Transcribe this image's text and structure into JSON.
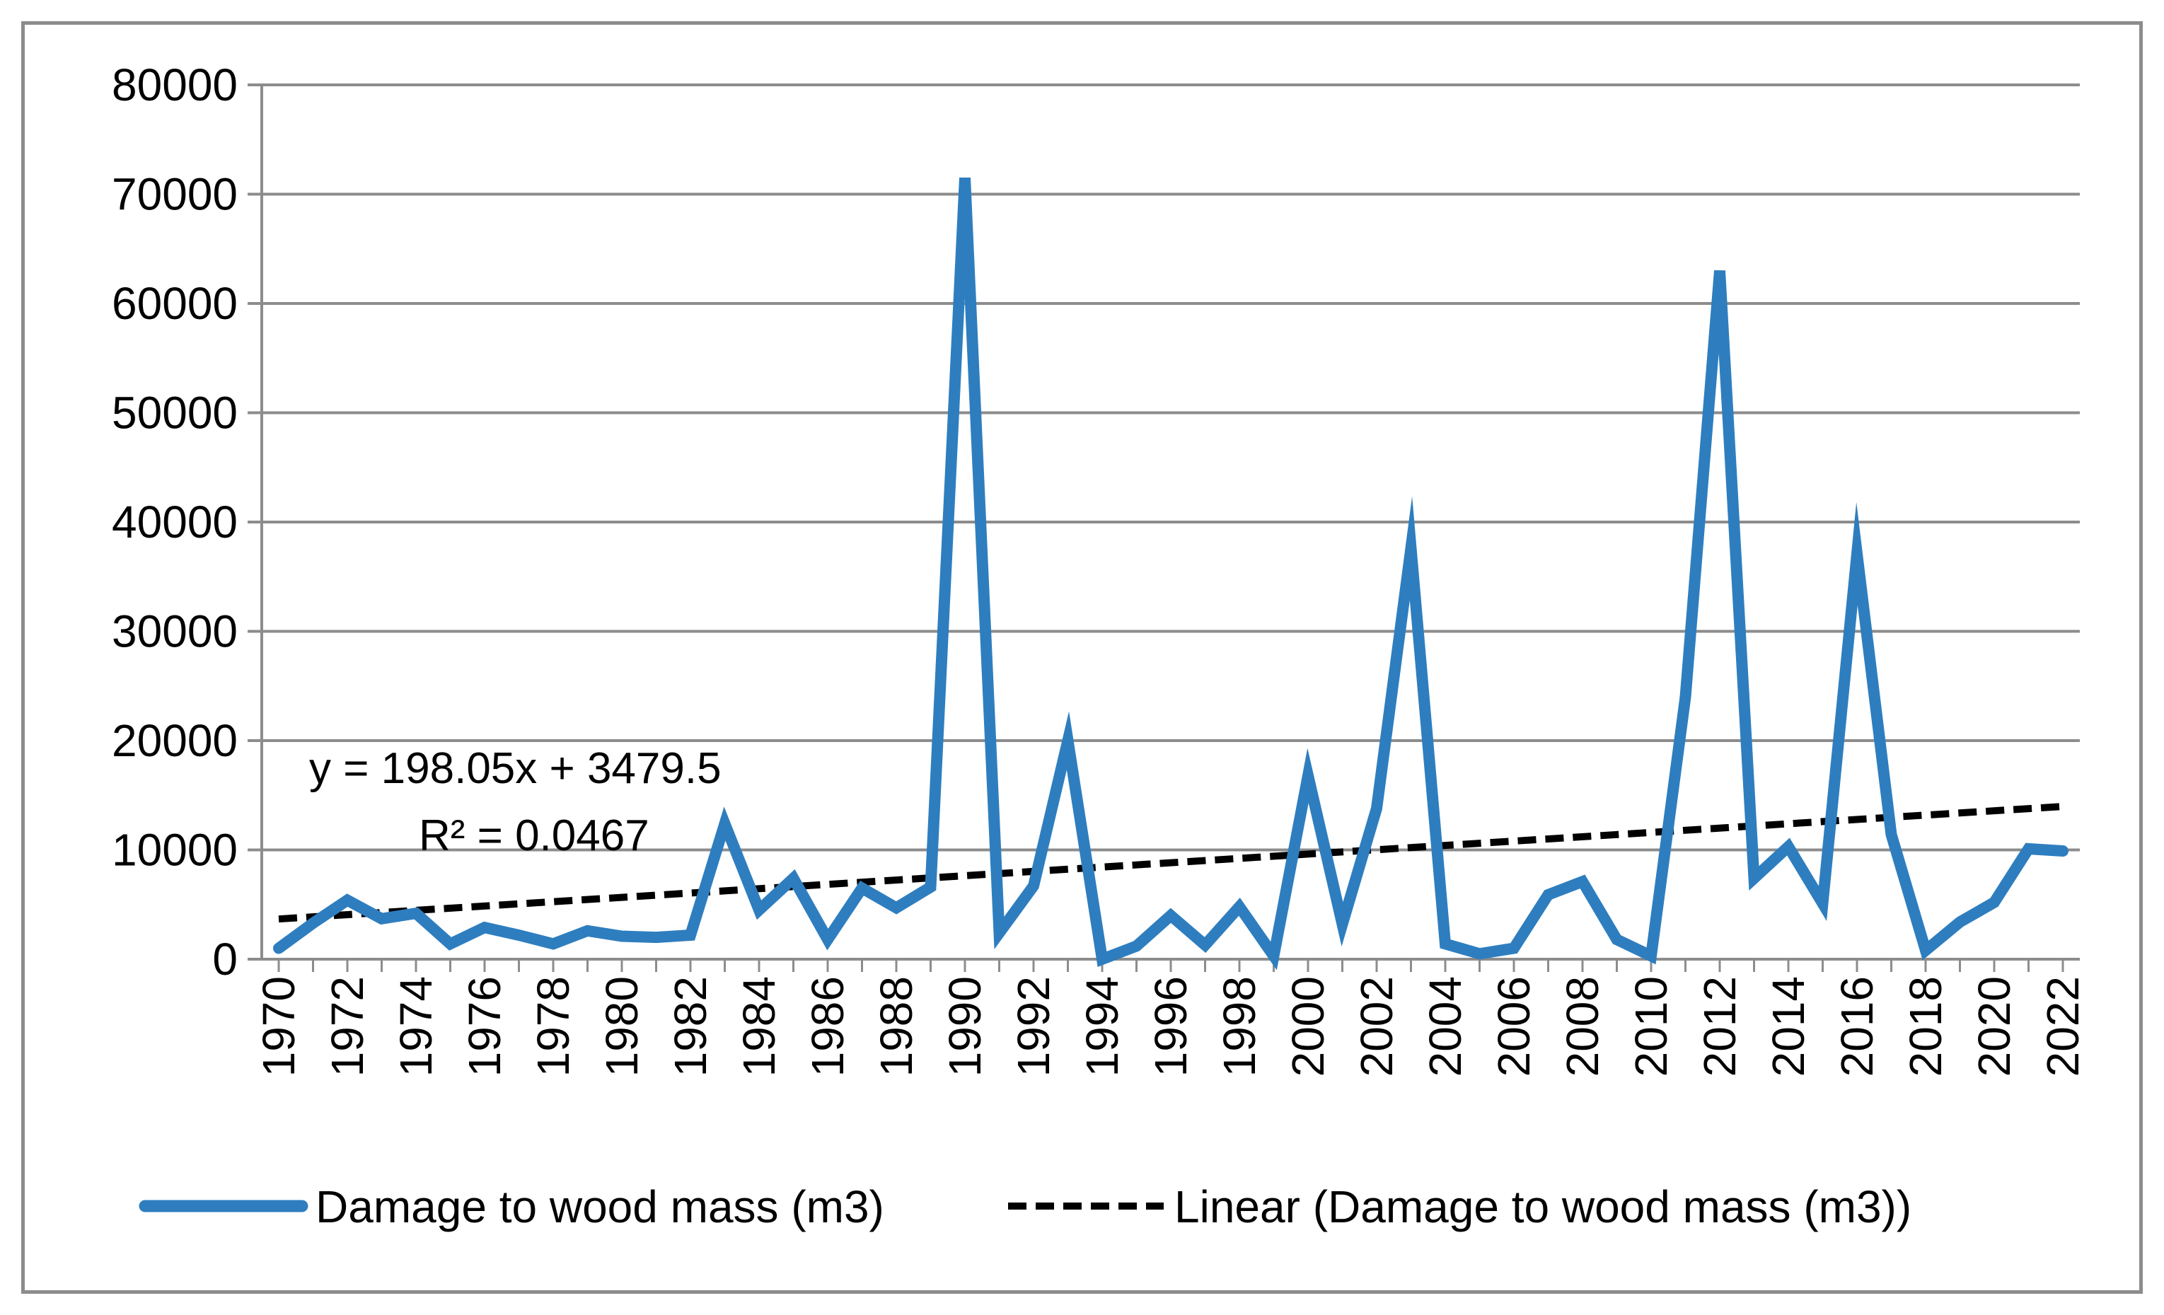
{
  "chart_data": {
    "type": "line",
    "title": "",
    "xlabel": "",
    "ylabel": "",
    "x_range": [
      1970,
      2022
    ],
    "ylim": [
      0,
      80000
    ],
    "y_ticks": [
      0,
      10000,
      20000,
      30000,
      40000,
      50000,
      60000,
      70000,
      80000
    ],
    "y_tick_labels": [
      "0",
      "10000",
      "20000",
      "30000",
      "40000",
      "50000",
      "60000",
      "70000",
      "80000"
    ],
    "x_ticks": [
      1970,
      1972,
      1974,
      1976,
      1978,
      1980,
      1982,
      1984,
      1986,
      1988,
      1990,
      1992,
      1994,
      1996,
      1998,
      2000,
      2002,
      2004,
      2006,
      2008,
      2010,
      2012,
      2014,
      2016,
      2018,
      2020,
      2022
    ],
    "x_tick_labels": [
      "1970",
      "1972",
      "1974",
      "1976",
      "1978",
      "1980",
      "1982",
      "1984",
      "1986",
      "1988",
      "1990",
      "1992",
      "1994",
      "1996",
      "1998",
      "2000",
      "2002",
      "2004",
      "2006",
      "2008",
      "2010",
      "2012",
      "2014",
      "2016",
      "2018",
      "2020",
      "2022"
    ],
    "grid": "horizontal",
    "legend_position": "bottom",
    "series": [
      {
        "name": "Damage to wood mass (m3)",
        "color": "#2e7ebf",
        "style": "solid",
        "x": [
          1970,
          1971,
          1972,
          1973,
          1974,
          1975,
          1976,
          1977,
          1978,
          1979,
          1980,
          1981,
          1982,
          1983,
          1984,
          1985,
          1986,
          1987,
          1988,
          1989,
          1990,
          1991,
          1992,
          1993,
          1994,
          1995,
          1996,
          1997,
          1998,
          1999,
          2000,
          2001,
          2002,
          2003,
          2004,
          2005,
          2006,
          2007,
          2008,
          2009,
          2010,
          2011,
          2012,
          2013,
          2014,
          2015,
          2016,
          2017,
          2018,
          2019,
          2020,
          2021,
          2022
        ],
        "values": [
          1000,
          3300,
          5400,
          3700,
          4200,
          1400,
          2900,
          2200,
          1400,
          2600,
          2100,
          2000,
          2200,
          12400,
          4500,
          7400,
          1800,
          6500,
          4700,
          6600,
          71500,
          2400,
          6700,
          20000,
          0,
          1200,
          4000,
          1300,
          4800,
          300,
          16800,
          3200,
          13800,
          37600,
          1400,
          500,
          1000,
          5900,
          7100,
          1800,
          300,
          24000,
          63000,
          7400,
          10300,
          5100,
          37100,
          11400,
          800,
          3400,
          5200,
          10100,
          9900
        ]
      },
      {
        "name": "Linear (Damage to wood mass (m3))",
        "color": "#000000",
        "style": "dashed",
        "trendline": true,
        "slope": 198.05,
        "intercept": 3479.5
      }
    ],
    "annotations": {
      "equation": "y = 198.05x + 3479.5",
      "r_squared": "R² = 0.0467"
    }
  }
}
